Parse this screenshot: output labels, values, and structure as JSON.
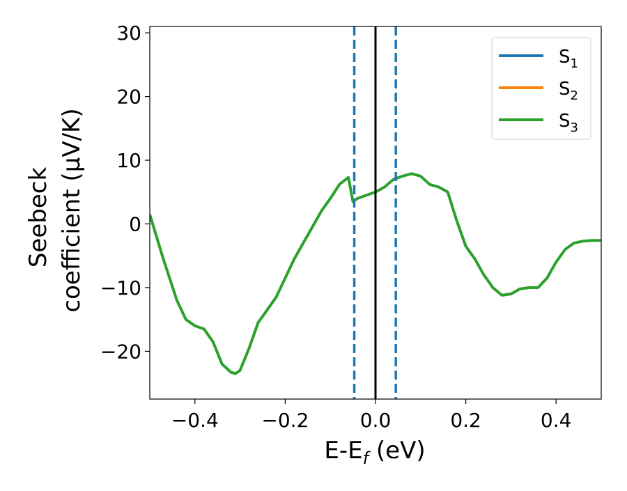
{
  "chart_data": {
    "type": "line",
    "xlabel": "E-E",
    "xlabel_sub": "f",
    "xlabel_unit": " (eV)",
    "ylabel_line1": "Seebeck",
    "ylabel_line2": "coefficient  (μV/K)",
    "xlim": [
      -0.5,
      0.5
    ],
    "ylim": [
      -27.5,
      31
    ],
    "x_ticks": [
      -0.4,
      -0.2,
      0.0,
      0.2,
      0.4
    ],
    "x_tick_labels": [
      "−0.4",
      "−0.2",
      "0.0",
      "0.2",
      "0.4"
    ],
    "y_ticks": [
      -20,
      -10,
      0,
      10,
      20,
      30
    ],
    "y_tick_labels": [
      "−20",
      "−10",
      "0",
      "10",
      "20",
      "30"
    ],
    "legend_position": "top-right",
    "series": [
      {
        "name": "S",
        "sub": "1",
        "color": "#1f77b4",
        "values": []
      },
      {
        "name": "S",
        "sub": "2",
        "color": "#ff7f0e",
        "values": []
      },
      {
        "name": "S",
        "sub": "3",
        "color": "#2ca02c",
        "x": [
          -0.5,
          -0.47,
          -0.44,
          -0.42,
          -0.4,
          -0.38,
          -0.36,
          -0.34,
          -0.32,
          -0.31,
          -0.3,
          -0.28,
          -0.26,
          -0.24,
          -0.22,
          -0.2,
          -0.18,
          -0.16,
          -0.14,
          -0.12,
          -0.1,
          -0.08,
          -0.06,
          -0.05,
          -0.04,
          -0.02,
          0.0,
          0.02,
          0.04,
          0.06,
          0.08,
          0.1,
          0.12,
          0.14,
          0.16,
          0.18,
          0.2,
          0.22,
          0.24,
          0.26,
          0.28,
          0.3,
          0.32,
          0.34,
          0.36,
          0.38,
          0.4,
          0.42,
          0.44,
          0.46,
          0.48,
          0.5
        ],
        "values": [
          1.5,
          -5.5,
          -12.0,
          -15.0,
          -16.0,
          -16.5,
          -18.5,
          -22.0,
          -23.3,
          -23.5,
          -23.0,
          -19.5,
          -15.5,
          -13.5,
          -11.5,
          -8.5,
          -5.5,
          -3.0,
          -0.5,
          2.0,
          4.0,
          6.2,
          7.3,
          3.5,
          4.0,
          4.5,
          5.0,
          5.8,
          7.0,
          7.5,
          7.9,
          7.5,
          6.2,
          5.8,
          5.0,
          0.5,
          -3.5,
          -5.5,
          -8.0,
          -10.0,
          -11.2,
          -11.0,
          -10.2,
          -10.0,
          -10.0,
          -8.5,
          -6.0,
          -4.0,
          -3.0,
          -2.7,
          -2.6,
          -2.6
        ]
      }
    ],
    "vlines": [
      {
        "x": -0.047,
        "style": "dashed",
        "color": "#1f77b4"
      },
      {
        "x": 0.0,
        "style": "solid",
        "color": "#000000"
      },
      {
        "x": 0.045,
        "style": "dashed",
        "color": "#1f77b4"
      }
    ]
  }
}
